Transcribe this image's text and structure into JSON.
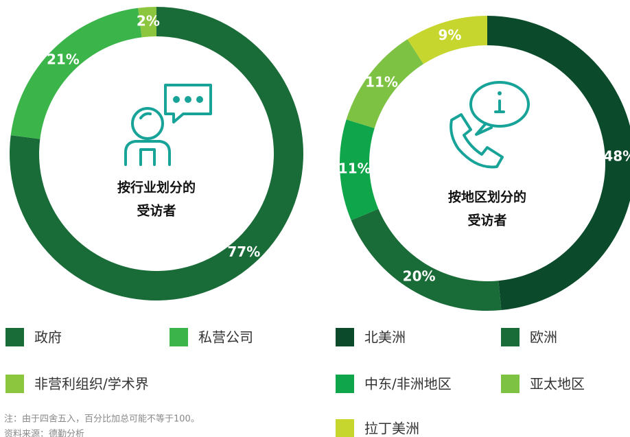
{
  "chart_data": [
    {
      "type": "donut",
      "center_text": [
        "按行业划分的",
        "受访者"
      ],
      "categories": [
        "政府",
        "私营公司",
        "非营利组织/学术界"
      ],
      "values": [
        77,
        21,
        2
      ],
      "value_labels": [
        "77%",
        "21%",
        "2%"
      ],
      "colors": [
        "#196b38",
        "#3bb54a",
        "#8cc63f"
      ]
    },
    {
      "type": "donut",
      "center_text": [
        "按地区划分的",
        "受访者"
      ],
      "categories": [
        "北美洲",
        "欧洲",
        "中东/非洲地区",
        "亚太地区",
        "拉丁美洲"
      ],
      "values": [
        48,
        20,
        11,
        11,
        9
      ],
      "value_labels": [
        "48%",
        "20%",
        "11%",
        "11%",
        "9%"
      ],
      "colors": [
        "#0b4a2b",
        "#196b38",
        "#0fa54b",
        "#7dc242",
        "#c6d62e"
      ]
    }
  ],
  "notes": [
    "注：由于四舍五入，百分比加总可能不等于100。",
    "资料来源：德勤分析"
  ]
}
